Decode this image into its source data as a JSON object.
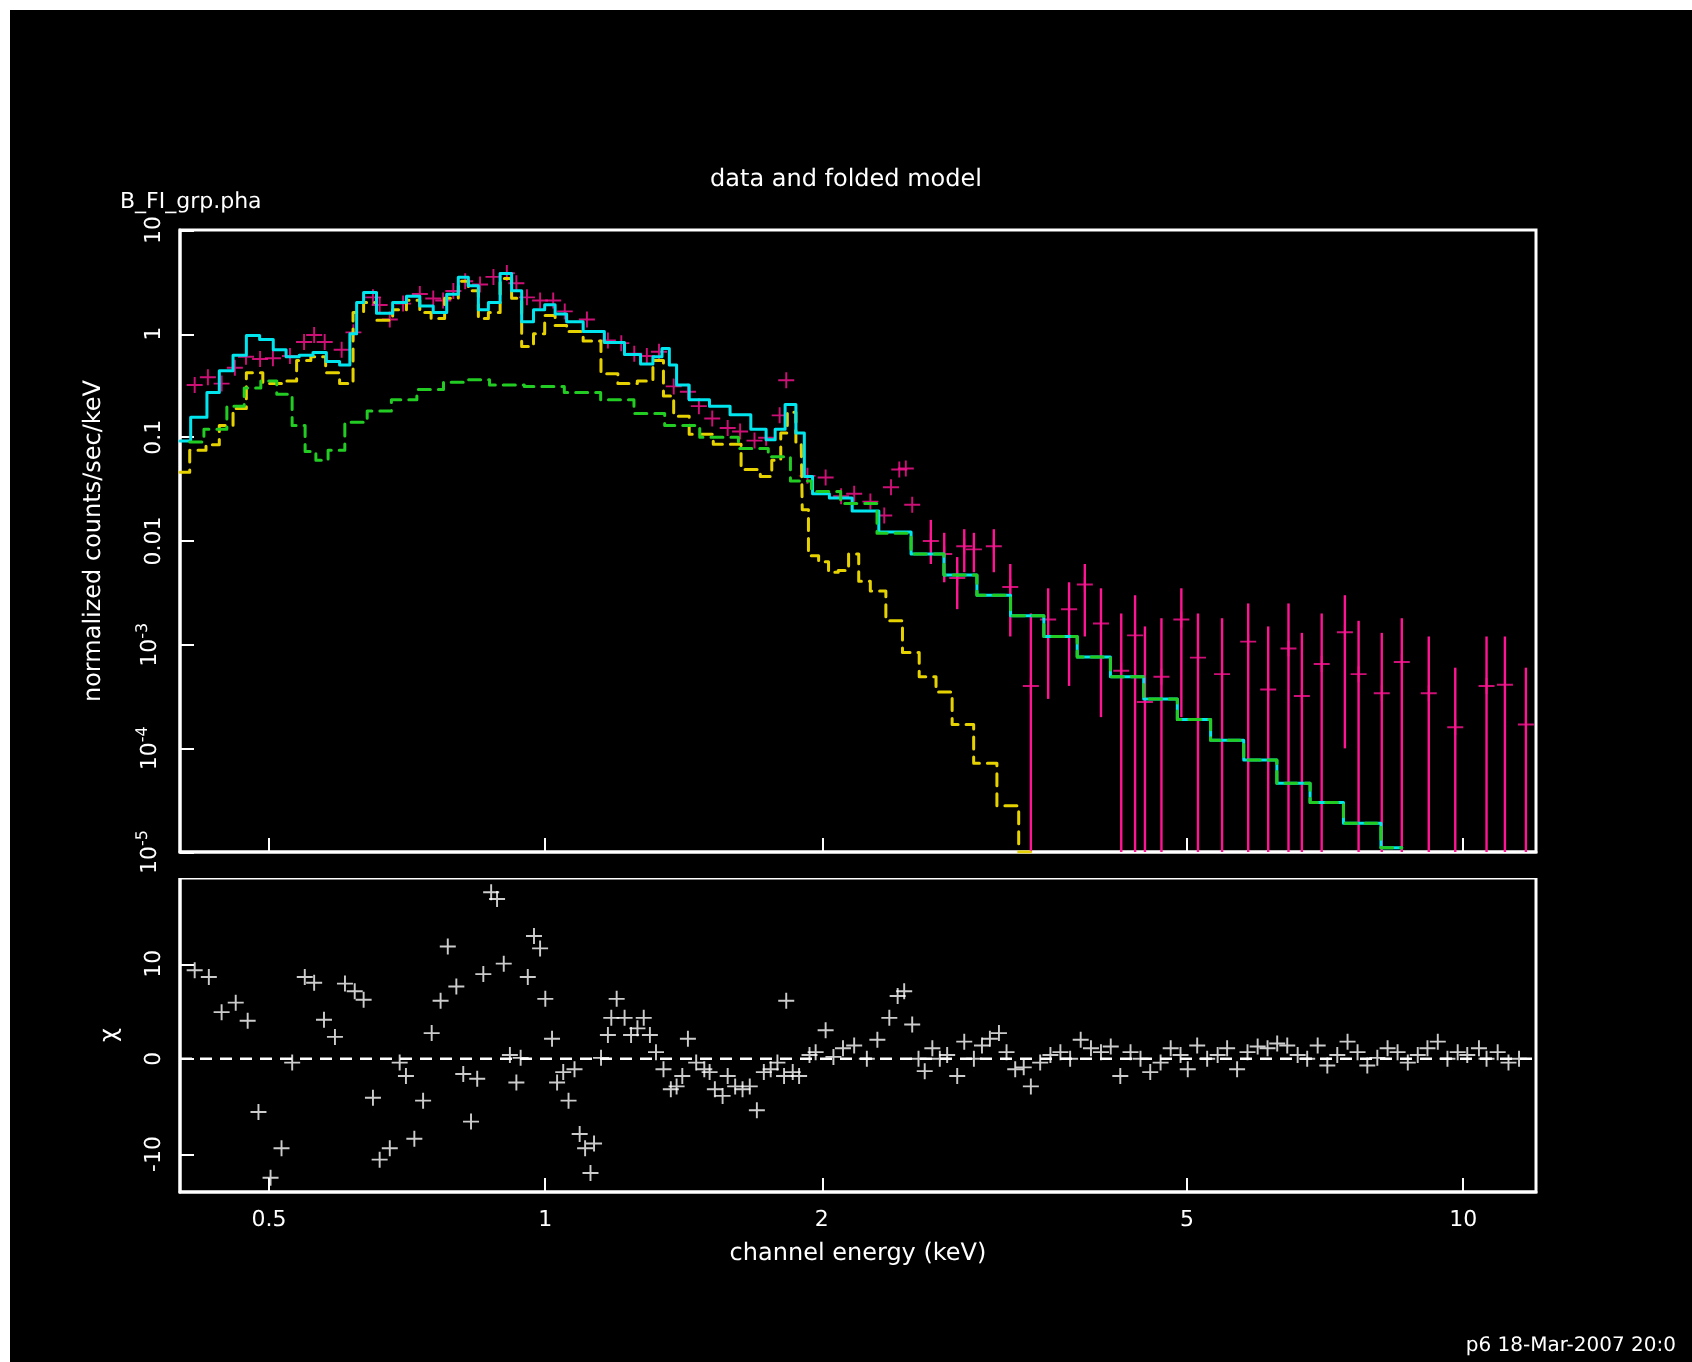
{
  "chart_data": [
    {
      "type": "step",
      "title": "data and folded model",
      "subtitle": "B_FI_grp.pha",
      "ylabel": "normalized counts/sec/keV",
      "log": "xy",
      "grid": false,
      "tick_labels": "y",
      "xlim": [
        0.4,
        12
      ],
      "xticks": [
        0.5,
        1,
        2,
        5,
        10
      ],
      "ylim": [
        1e-05,
        10
      ],
      "yticks": [
        {
          "value": 1e-05,
          "label": "10$^{-5}$"
        },
        {
          "value": 0.0001,
          "label": "10$^{-4}$"
        },
        {
          "value": 0.001,
          "label": "10$^{-3}$"
        },
        0.01,
        0.1,
        1,
        10
      ],
      "series": [
        {
          "type": "scatter",
          "marker": "cross",
          "color": "#ff1493",
          "x": [
            0.415,
            0.429,
            0.444,
            0.459,
            0.472,
            0.489,
            0.505,
            0.527,
            0.546,
            0.56,
            0.575,
            0.6,
            0.618,
            0.649,
            0.66,
            0.677,
            0.7,
            0.73,
            0.755,
            0.774,
            0.794,
            0.818,
            0.849,
            0.878,
            0.908,
            0.93,
            0.955,
            0.987,
            1.02,
            1.05,
            1.11,
            1.17,
            1.21,
            1.25,
            1.29,
            1.33,
            1.38,
            1.43,
            1.47,
            1.52,
            1.58,
            1.63,
            1.69,
            1.74,
            1.8,
            1.83,
            1.93,
            2.02,
            2.1,
            2.17,
            2.26,
            2.34,
            2.38,
            2.43,
            2.47,
            2.51,
            2.63,
            2.72,
            2.81,
            2.86,
            2.93,
            3.08,
            3.21,
            3.38,
            3.53,
            3.72,
            3.87,
            4.03,
            4.24,
            4.39,
            4.5,
            4.69,
            4.93,
            5.14,
            5.46,
            5.83,
            6.13,
            6.45,
            6.67,
            7.01,
            7.43,
            7.69,
            8.15,
            8.57,
            9.17,
            9.8,
            10.6,
            11.1,
            11.7
          ],
          "values": [
            0.32,
            0.38,
            0.33,
            0.47,
            0.6,
            0.57,
            0.58,
            0.61,
            0.83,
            0.97,
            0.83,
            0.7,
            1.03,
            2.24,
            1.89,
            1.37,
            1.95,
            2.41,
            2.18,
            2.09,
            2.58,
            3.2,
            2.98,
            3.53,
            3.84,
            3.06,
            2.24,
            2.09,
            2.09,
            1.64,
            1.37,
            0.86,
            0.81,
            0.64,
            0.61,
            0.67,
            0.31,
            0.275,
            0.2,
            0.152,
            0.123,
            0.114,
            0.093,
            0.099,
            0.163,
            0.356,
            0.0425,
            0.041,
            0.027,
            0.0286,
            0.024,
            0.0176,
            0.033,
            0.049,
            0.05,
            0.0224,
            0.01,
            0.0075,
            0.0044,
            0.0089,
            0.0083,
            0.0089,
            0.0036,
            0.0004,
            0.00175,
            0.0022,
            0.0038,
            0.0016,
            0.00056,
            0.00123,
            0.00028,
            0.00049,
            0.00175,
            0.00075,
            0.00052,
            0.00107,
            0.00037,
            0.00092,
            0.00032,
            0.00065,
            0.00132,
            0.00052,
            0.00034,
            0.00068,
            0.00034,
            0.00016,
            0.0004,
            0.00041,
            0.00017
          ],
          "errors": [
            null,
            null,
            null,
            null,
            null,
            null,
            null,
            null,
            null,
            null,
            null,
            null,
            null,
            null,
            null,
            null,
            null,
            null,
            null,
            null,
            null,
            null,
            null,
            null,
            null,
            null,
            null,
            null,
            null,
            null,
            null,
            null,
            null,
            null,
            null,
            null,
            null,
            null,
            null,
            null,
            null,
            null,
            null,
            null,
            null,
            null,
            null,
            null,
            null,
            null,
            null,
            null,
            null,
            null,
            null,
            null,
            [
              0.006,
              0.016
            ],
            [
              0.004,
              0.012
            ],
            [
              0.0022,
              0.007
            ],
            [
              0.005,
              0.013
            ],
            [
              0.005,
              0.012
            ],
            [
              0.005,
              0.013
            ],
            [
              0.0012,
              0.006
            ],
            [
              1e-05,
              0.002
            ],
            [
              0.0003,
              0.0035
            ],
            [
              0.0004,
              0.004
            ],
            [
              0.0012,
              0.006
            ],
            [
              0.0002,
              0.0035
            ],
            [
              1e-05,
              0.002
            ],
            [
              1e-05,
              0.003
            ],
            [
              1e-05,
              0.0015
            ],
            [
              1e-05,
              0.0018
            ],
            [
              0.0002,
              0.0035
            ],
            [
              1e-05,
              0.002
            ],
            [
              1e-05,
              0.0018
            ],
            [
              1e-05,
              0.0025
            ],
            [
              1e-05,
              0.0015
            ],
            [
              1e-05,
              0.0025
            ],
            [
              1e-05,
              0.0013
            ],
            [
              1e-05,
              0.002
            ],
            [
              0.0001,
              0.003
            ],
            [
              1e-05,
              0.0017
            ],
            [
              1e-05,
              0.0013
            ],
            [
              1e-05,
              0.0018
            ],
            [
              1e-05,
              0.0012
            ],
            [
              1e-05,
              0.0006
            ],
            [
              1e-05,
              0.0012
            ],
            [
              1e-05,
              0.0012
            ],
            [
              1e-05,
              0.0006
            ]
          ]
        },
        {
          "type": "step",
          "line_style": "dashed",
          "color": "#e6d200",
          "x": [
            0.4,
            0.42,
            0.434,
            0.449,
            0.465,
            0.48,
            0.505,
            0.527,
            0.545,
            0.566,
            0.587,
            0.607,
            0.628,
            0.64,
            0.67,
            0.694,
            0.718,
            0.742,
            0.76,
            0.794,
            0.814,
            0.835,
            0.856,
            0.878,
            0.908,
            0.93,
            0.955,
            0.987,
            1.01,
            1.04,
            1.07,
            1.13,
            1.17,
            1.23,
            1.29,
            1.33,
            1.36,
            1.4,
            1.47,
            1.58,
            1.69,
            1.74,
            1.79,
            1.82,
            1.85,
            1.9,
            1.91,
            1.96,
            2.01,
            2.06,
            2.11,
            2.17,
            2.22,
            2.3,
            2.4,
            2.5,
            2.61,
            2.72,
            2.83,
            3.03,
            3.18,
            3.38
          ],
          "values": [
            0.046,
            0.075,
            0.085,
            0.13,
            0.19,
            0.42,
            0.33,
            0.35,
            0.55,
            0.6,
            0.42,
            0.33,
            1.6,
            2.0,
            1.35,
            1.7,
            2.1,
            1.6,
            1.4,
            2.2,
            3.2,
            2.6,
            1.4,
            1.6,
            3.4,
            2.2,
            0.75,
            1.0,
            1.5,
            1.2,
            1.05,
            0.85,
            0.41,
            0.33,
            0.35,
            0.55,
            0.25,
            0.16,
            0.107,
            0.086,
            0.049,
            0.042,
            0.06,
            0.11,
            0.175,
            0.09,
            0.02,
            0.0072,
            0.0063,
            0.005,
            0.0052,
            0.0075,
            0.0041,
            0.0033,
            0.0017,
            0.00084,
            0.00049,
            0.00035,
            0.00017,
            7.2e-05,
            2.8e-05,
            1e-05
          ]
        },
        {
          "type": "step",
          "line_style": "solid",
          "color": "#00e5ee",
          "x": [
            0.4,
            0.422,
            0.434,
            0.449,
            0.465,
            0.48,
            0.497,
            0.514,
            0.53,
            0.549,
            0.568,
            0.587,
            0.607,
            0.618,
            0.628,
            0.64,
            0.67,
            0.694,
            0.718,
            0.742,
            0.768,
            0.794,
            0.814,
            0.835,
            0.856,
            0.878,
            0.908,
            0.93,
            0.955,
            0.987,
            1.01,
            1.04,
            1.07,
            1.13,
            1.19,
            1.25,
            1.29,
            1.33,
            1.35,
            1.38,
            1.4,
            1.47,
            1.55,
            1.63,
            1.72,
            1.76,
            1.8,
            1.85,
            1.9,
            1.93,
            1.98,
            2.1,
            2.22,
            2.4,
            2.61,
            2.83,
            3.08,
            3.35,
            3.64,
            3.96,
            4.3,
            4.68,
            5.09,
            5.53,
            6.01,
            6.53,
            7.1,
            7.72,
            8.57
          ],
          "values": [
            0.092,
            0.156,
            0.27,
            0.44,
            0.62,
            0.96,
            0.88,
            0.7,
            0.6,
            0.62,
            0.66,
            0.54,
            0.5,
            1.0,
            2.0,
            2.5,
            1.57,
            2.0,
            2.3,
            1.85,
            1.6,
            2.4,
            3.5,
            2.9,
            1.7,
            2.0,
            3.8,
            2.6,
            1.3,
            1.7,
            1.9,
            1.55,
            1.3,
            1.05,
            0.82,
            0.63,
            0.51,
            0.6,
            0.72,
            0.5,
            0.32,
            0.23,
            0.2,
            0.165,
            0.12,
            0.095,
            0.12,
            0.207,
            0.11,
            0.042,
            0.0285,
            0.026,
            0.0195,
            0.0122,
            0.0075,
            0.0047,
            0.003,
            0.0019,
            0.0012,
            0.00076,
            0.00049,
            0.0003,
            0.00019,
            0.00012,
            7.7e-05,
            4.6e-05,
            3e-05,
            1.9e-05,
            1.1e-05
          ]
        },
        {
          "type": "step",
          "line_style": "dashed",
          "color": "#22cc22",
          "x": [
            0.41,
            0.44,
            0.46,
            0.48,
            0.5,
            0.52,
            0.54,
            0.555,
            0.57,
            0.59,
            0.62,
            0.66,
            0.7,
            0.75,
            0.8,
            0.84,
            0.9,
            1.0,
            1.1,
            1.2,
            1.3,
            1.4,
            1.55,
            1.7,
            1.8,
            1.9,
            2.0,
            2.2,
            2.4,
            2.61,
            2.83,
            3.08,
            3.35,
            3.64,
            3.96,
            4.3,
            4.68,
            5.09,
            5.53,
            6.01,
            6.53,
            7.1,
            7.72,
            8.57
          ],
          "values": [
            0.09,
            0.12,
            0.2,
            0.3,
            0.35,
            0.26,
            0.13,
            0.073,
            0.06,
            0.075,
            0.14,
            0.18,
            0.23,
            0.29,
            0.34,
            0.36,
            0.32,
            0.31,
            0.27,
            0.23,
            0.17,
            0.13,
            0.1,
            0.078,
            0.065,
            0.038,
            0.03,
            0.023,
            0.0119,
            0.0075,
            0.0047,
            0.003,
            0.0019,
            0.0012,
            0.00076,
            0.00049,
            0.0003,
            0.00019,
            0.00012,
            7.7e-05,
            4.6e-05,
            3e-05,
            1.9e-05,
            1.1e-05
          ]
        }
      ]
    },
    {
      "type": "scatter",
      "marker": "cross",
      "xlabel": "channel energy (keV)",
      "ylabel": "χ",
      "log": "x",
      "grid": false,
      "xlim": [
        0.4,
        12
      ],
      "xticks": [
        0.5,
        1,
        2,
        5,
        10
      ],
      "ylim": [
        -14,
        19
      ],
      "yticks": [
        -10,
        0,
        10
      ],
      "annotations": [
        "p6 18-Mar-2007 20:0"
      ],
      "ref_lines": [
        {
          "axis": "y",
          "value": 0,
          "line_style": "dashed",
          "color": "#ffffff"
        }
      ],
      "series": [
        {
          "color": "#ffffff",
          "x": [
            0.415,
            0.43,
            0.444,
            0.46,
            0.474,
            0.487,
            0.502,
            0.516,
            0.53,
            0.547,
            0.56,
            0.574,
            0.59,
            0.605,
            0.62,
            0.634,
            0.649,
            0.66,
            0.677,
            0.694,
            0.705,
            0.72,
            0.736,
            0.752,
            0.769,
            0.783,
            0.8,
            0.814,
            0.83,
            0.843,
            0.856,
            0.873,
            0.886,
            0.901,
            0.915,
            0.93,
            0.94,
            0.957,
            0.972,
            0.987,
            1.0,
            1.017,
            1.03,
            1.046,
            1.06,
            1.076,
            1.09,
            1.105,
            1.12,
            1.13,
            1.15,
            1.17,
            1.18,
            1.196,
            1.22,
            1.24,
            1.26,
            1.28,
            1.3,
            1.32,
            1.345,
            1.37,
            1.39,
            1.41,
            1.43,
            1.46,
            1.49,
            1.51,
            1.53,
            1.56,
            1.58,
            1.61,
            1.64,
            1.67,
            1.7,
            1.73,
            1.76,
            1.79,
            1.82,
            1.83,
            1.86,
            1.89,
            1.94,
            1.97,
            2.02,
            2.06,
            2.11,
            2.17,
            2.24,
            2.3,
            2.37,
            2.42,
            2.46,
            2.51,
            2.55,
            2.59,
            2.64,
            2.69,
            2.74,
            2.81,
            2.86,
            2.93,
            2.99,
            3.05,
            3.12,
            3.18,
            3.25,
            3.32,
            3.38,
            3.46,
            3.55,
            3.64,
            3.73,
            3.83,
            3.93,
            4.03,
            4.13,
            4.23,
            4.34,
            4.45,
            4.56,
            4.68,
            4.8,
            4.92,
            5.01,
            5.13,
            5.26,
            5.4,
            5.53,
            5.67,
            5.82,
            5.97,
            6.12,
            6.27,
            6.43,
            6.6,
            6.76,
            6.94,
            7.11,
            7.29,
            7.48,
            7.67,
            7.86,
            8.06,
            8.27,
            8.48,
            8.7,
            8.92,
            9.14,
            9.38,
            9.61,
            9.86,
            10.1,
            10.4,
            10.6,
            10.9,
            11.2,
            11.5
          ],
          "values": [
            9.3,
            8.6,
            4.9,
            5.9,
            4.0,
            -5.6,
            -12.5,
            -9.4,
            -0.4,
            8.6,
            8.0,
            4.1,
            2.3,
            7.9,
            7.1,
            6.2,
            -4.1,
            -10.6,
            -9.4,
            -0.4,
            -1.8,
            -8.4,
            -4.4,
            2.7,
            6.1,
            11.8,
            7.6,
            -1.6,
            -6.6,
            -2.1,
            8.9,
            17.5,
            16.8,
            10,
            0.4,
            -2.5,
            0.1,
            8.6,
            12.9,
            11.6,
            6.3,
            2.1,
            -2.5,
            -1.4,
            -4.4,
            -1.1,
            -7.9,
            -9.4,
            -12,
            -8.9,
            0.1,
            2.5,
            4.3,
            6.3,
            4.3,
            2.5,
            3.2,
            4.3,
            2.5,
            0.7,
            -1.1,
            -3.2,
            -2.9,
            -1.8,
            2.1,
            -0.4,
            -1.1,
            -1.4,
            -3.2,
            -3.9,
            -1.8,
            -2.9,
            -3.2,
            -2.9,
            -5.4,
            -1.4,
            -1.1,
            -0.4,
            -1.8,
            6.1,
            -1.4,
            -1.8,
            0.4,
            0.7,
            3.0,
            0.2,
            1.1,
            1.4,
            0,
            2,
            4.3,
            6.6,
            7.1,
            3.6,
            0,
            -1.3,
            1.1,
            0,
            0.4,
            -1.8,
            1.8,
            0,
            1.4,
            2.1,
            2.7,
            0.7,
            -1.1,
            -0.9,
            -2.9,
            -0.4,
            0.4,
            0.7,
            0,
            2.0,
            1.1,
            0.7,
            1.3,
            -1.8,
            0.7,
            0,
            -1.4,
            -0.4,
            1.1,
            0.4,
            -1.1,
            1.4,
            0,
            0.4,
            1.1,
            -1.1,
            0.7,
            1.3,
            1.1,
            1.6,
            1.4,
            0.4,
            0,
            1.4,
            -0.7,
            0.4,
            1.8,
            0.7,
            -0.7,
            0.1,
            1.1,
            0.7,
            -0.4,
            0.4,
            1.1,
            1.8,
            0,
            0.7,
            0.4,
            1.1,
            0,
            0.7,
            -0.4,
            0
          ]
        }
      ]
    }
  ]
}
